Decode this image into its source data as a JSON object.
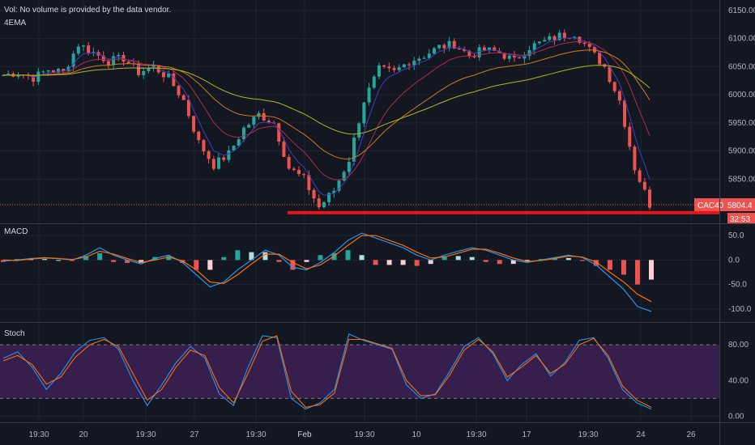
{
  "header": {
    "vol_note": "Vol: No volume is provided by the data vendor.",
    "ema_label": "4EMA"
  },
  "panes": {
    "macd_label": "MACD",
    "stoch_label": "Stoch"
  },
  "price_tag": {
    "symbol": "CAC40",
    "value": "5804.4",
    "countdown": "32:53"
  },
  "colors": {
    "background": "#131722",
    "up": "#26a69a",
    "down": "#ef5350",
    "grid": "#1f2430",
    "support_line": "#e8141a",
    "macd_line": "#2196f3",
    "signal_line": "#ff6d00",
    "stoch_band": "#3b1f52",
    "ema1": "#3f3fbf",
    "ema2": "#b22a4a",
    "ema3": "#d27a1a",
    "ema4": "#b5b518"
  },
  "chart_data": [
    {
      "type": "candlestick",
      "pane": "price",
      "y_ticks": [
        6150,
        6100,
        6050,
        6000,
        5950,
        5900,
        5850
      ],
      "ylim": [
        5780,
        6160
      ],
      "x_tick_labels": [
        "19:30",
        "20",
        "19:30",
        "27",
        "19:30",
        "Feb",
        "19:30",
        "10",
        "19:30",
        "17",
        "19:30",
        "24",
        "26"
      ],
      "support_level": 5796,
      "last_price": 5804.4,
      "close_path": [
        6035,
        6040,
        6030,
        6045,
        6040,
        6090,
        6075,
        6060,
        6065,
        6040,
        6050,
        6030,
        5990,
        5915,
        5875,
        5895,
        5940,
        5965,
        5950,
        5870,
        5850,
        5800,
        5830,
        5885,
        5990,
        6045,
        6040,
        6060,
        6070,
        6085,
        6090,
        6070,
        6080,
        6075,
        6060,
        6085,
        6095,
        6105,
        6110,
        6080,
        6050,
        5990,
        5870,
        5805
      ]
    },
    {
      "type": "line",
      "pane": "macd",
      "y_ticks": [
        50.0,
        0.0,
        -50.0,
        -100.0
      ],
      "ylim": [
        -120,
        65
      ],
      "series": [
        {
          "role": "macd",
          "values": [
            -2,
            0,
            3,
            5,
            3,
            0,
            10,
            25,
            10,
            0,
            -8,
            3,
            10,
            -5,
            -30,
            -55,
            -45,
            -20,
            0,
            20,
            10,
            -15,
            -20,
            -5,
            15,
            40,
            55,
            45,
            35,
            25,
            10,
            0,
            10,
            18,
            25,
            20,
            10,
            0,
            -5,
            0,
            5,
            10,
            5,
            -10,
            -35,
            -60,
            -95,
            -105
          ]
        },
        {
          "role": "signal",
          "values": [
            0,
            -1,
            2,
            4,
            3,
            1,
            6,
            18,
            12,
            3,
            -5,
            0,
            6,
            -2,
            -20,
            -45,
            -48,
            -30,
            -8,
            12,
            12,
            -5,
            -18,
            -10,
            8,
            30,
            50,
            50,
            40,
            30,
            16,
            4,
            6,
            14,
            22,
            22,
            14,
            4,
            -3,
            -1,
            3,
            8,
            6,
            -4,
            -25,
            -45,
            -70,
            -85
          ]
        }
      ]
    },
    {
      "type": "line",
      "pane": "stoch",
      "y_ticks": [
        80.0,
        40.0,
        0.0
      ],
      "ylim": [
        -5,
        100
      ],
      "band": [
        20,
        80
      ],
      "series": [
        {
          "role": "k",
          "values": [
            65,
            72,
            55,
            30,
            48,
            72,
            85,
            88,
            75,
            40,
            12,
            35,
            60,
            78,
            65,
            25,
            12,
            55,
            90,
            88,
            20,
            8,
            15,
            30,
            92,
            85,
            80,
            75,
            35,
            20,
            25,
            50,
            78,
            88,
            70,
            40,
            58,
            70,
            45,
            60,
            85,
            88,
            65,
            30,
            15,
            8
          ]
        },
        {
          "role": "d",
          "values": [
            62,
            68,
            58,
            36,
            44,
            66,
            80,
            86,
            78,
            48,
            18,
            30,
            55,
            74,
            68,
            32,
            15,
            48,
            84,
            90,
            28,
            10,
            13,
            26,
            86,
            86,
            81,
            76,
            40,
            23,
            24,
            46,
            74,
            86,
            72,
            44,
            55,
            68,
            48,
            58,
            80,
            87,
            68,
            34,
            18,
            10
          ]
        }
      ]
    }
  ]
}
